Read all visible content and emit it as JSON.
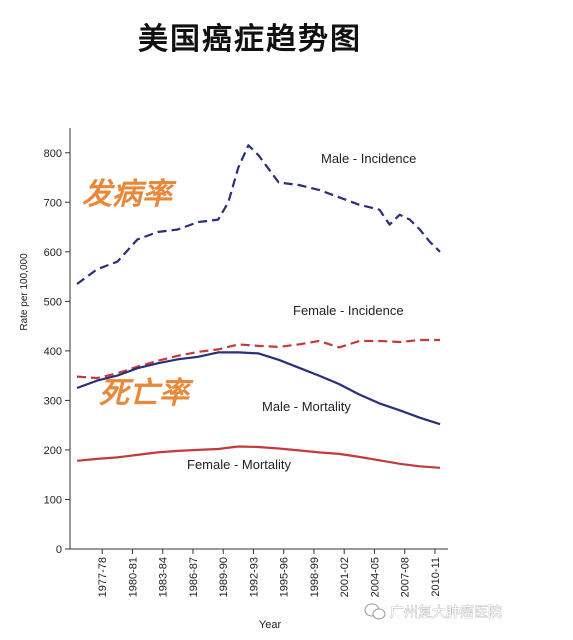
{
  "title": "美国癌症趋势图",
  "overlays": {
    "incidence_label": "发病率",
    "mortality_label": "死亡率"
  },
  "watermark": {
    "text": "广州复大肿瘤医院",
    "icon": "wechat-icon"
  },
  "chart_data": {
    "type": "line",
    "xlabel": "Year",
    "ylabel": "Rate per 100,000",
    "ylim": [
      0,
      850
    ],
    "yticks": [
      0,
      100,
      200,
      300,
      400,
      500,
      600,
      700,
      800
    ],
    "grid": false,
    "x_tick_labels": [
      "1977-78",
      "1980-81",
      "1983-84",
      "1986-87",
      "1989-90",
      "1992-93",
      "1995-96",
      "1998-99",
      "2001-02",
      "2004-05",
      "2007-08",
      "2010-11"
    ],
    "x_range": [
      1975,
      2011
    ],
    "series": [
      {
        "name": "Male - Incidence",
        "color": "#2b2f7a",
        "dash": true,
        "x": [
          1975,
          1977,
          1979,
          1981,
          1983,
          1985,
          1987,
          1989,
          1990,
          1991,
          1992,
          1993,
          1995,
          1997,
          1999,
          2001,
          2003,
          2005,
          2006,
          2007,
          2008,
          2009,
          2010,
          2011
        ],
        "y": [
          535,
          565,
          580,
          625,
          640,
          645,
          660,
          665,
          700,
          770,
          815,
          795,
          740,
          735,
          725,
          710,
          695,
          685,
          655,
          675,
          665,
          645,
          620,
          600
        ]
      },
      {
        "name": "Female - Incidence",
        "color": "#c43a3a",
        "dash": true,
        "x": [
          1975,
          1977,
          1979,
          1981,
          1983,
          1985,
          1987,
          1989,
          1991,
          1993,
          1995,
          1997,
          1999,
          2001,
          2003,
          2005,
          2007,
          2009,
          2011
        ],
        "y": [
          348,
          345,
          355,
          368,
          380,
          390,
          398,
          403,
          413,
          410,
          408,
          413,
          420,
          407,
          420,
          420,
          418,
          422,
          422
        ]
      },
      {
        "name": "Male - Mortality",
        "color": "#2b2f7a",
        "dash": false,
        "x": [
          1975,
          1977,
          1979,
          1981,
          1983,
          1985,
          1987,
          1989,
          1991,
          1993,
          1995,
          1997,
          1999,
          2001,
          2003,
          2005,
          2007,
          2009,
          2011
        ],
        "y": [
          325,
          340,
          350,
          365,
          375,
          383,
          388,
          397,
          397,
          395,
          382,
          366,
          350,
          333,
          312,
          294,
          280,
          265,
          252
        ]
      },
      {
        "name": "Female - Mortality",
        "color": "#c43a3a",
        "dash": false,
        "x": [
          1975,
          1977,
          1979,
          1981,
          1983,
          1985,
          1987,
          1989,
          1991,
          1993,
          1995,
          1997,
          1999,
          2001,
          2003,
          2005,
          2007,
          2009,
          2011
        ],
        "y": [
          178,
          182,
          185,
          190,
          195,
          198,
          200,
          202,
          207,
          206,
          203,
          199,
          195,
          192,
          186,
          179,
          172,
          167,
          164
        ]
      }
    ]
  }
}
